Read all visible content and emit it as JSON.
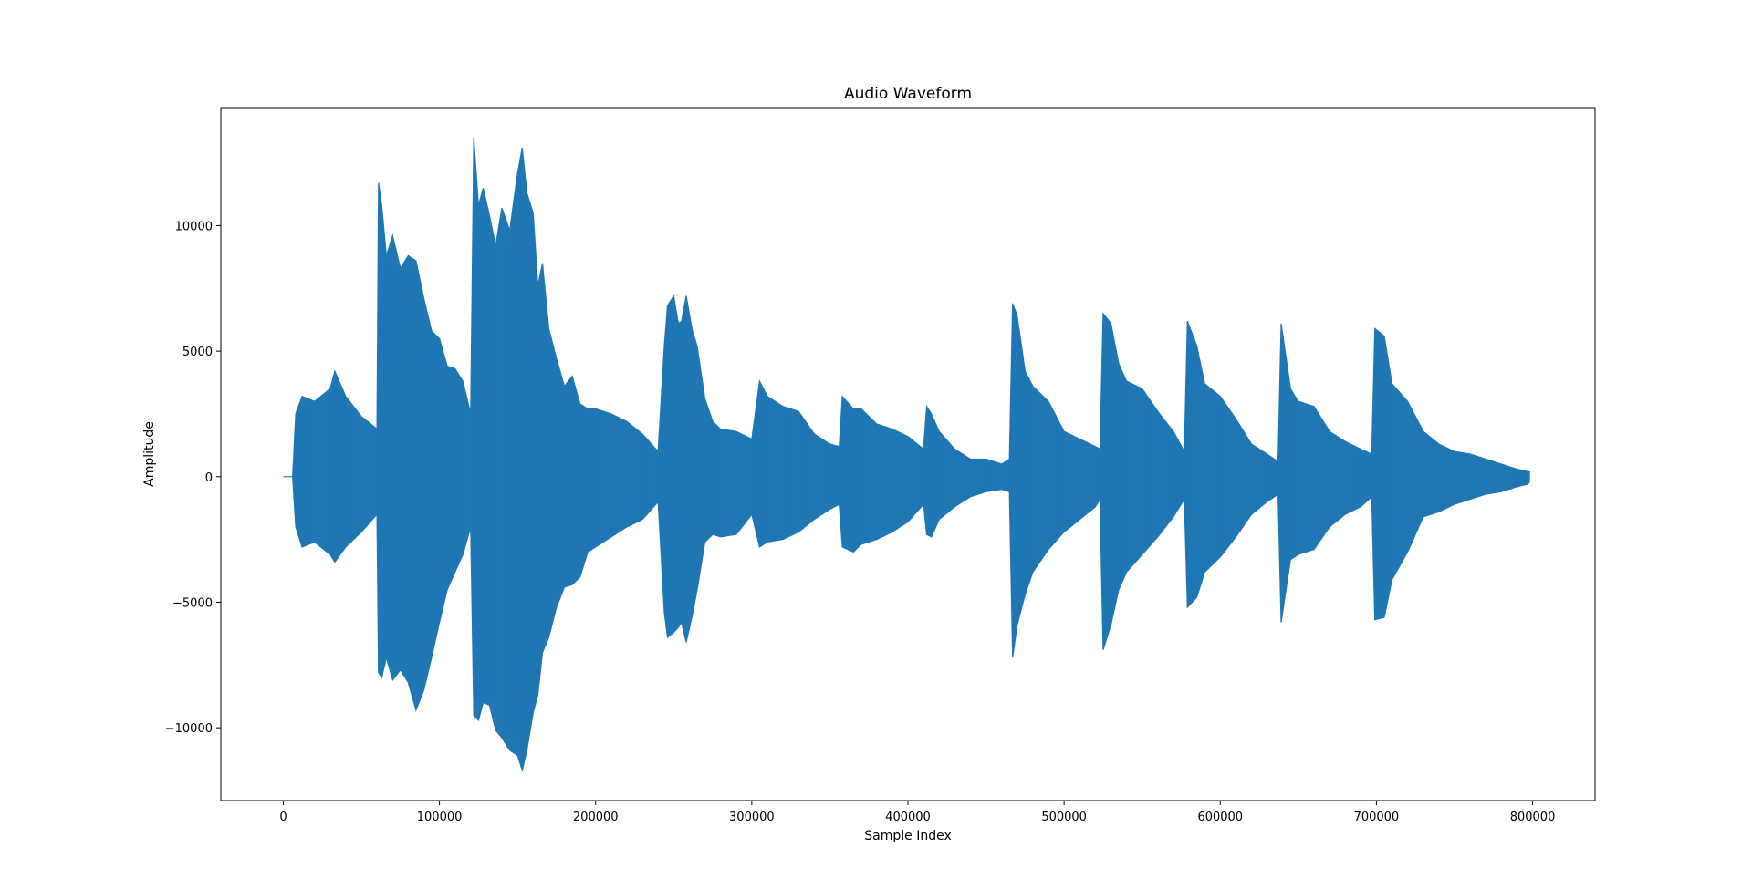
{
  "chart_data": {
    "type": "line",
    "title": "Audio Waveform",
    "xlabel": "Sample Index",
    "ylabel": "Amplitude",
    "xlim": [
      -40000,
      840000
    ],
    "ylim": [
      -12900,
      14700
    ],
    "x_ticks": [
      0,
      100000,
      200000,
      300000,
      400000,
      500000,
      600000,
      700000,
      800000
    ],
    "x_tick_labels": [
      "0",
      "100000",
      "200000",
      "300000",
      "400000",
      "500000",
      "600000",
      "700000",
      "800000"
    ],
    "y_ticks": [
      -10000,
      -5000,
      0,
      5000,
      10000
    ],
    "y_tick_labels": [
      "−10000",
      "−5000",
      "0",
      "5000",
      "10000"
    ],
    "grid": false,
    "series_color": "#1f77b4",
    "series": [
      {
        "x": [
          0,
          6000,
          8000,
          12000,
          20000,
          30000,
          33000,
          40000,
          50000,
          60000,
          61000,
          63000,
          66000,
          70000,
          75000,
          80000,
          85000,
          90000,
          95000,
          100000,
          105000,
          110000,
          115000,
          120000,
          122000,
          125000,
          128000,
          132000,
          136000,
          140000,
          145000,
          150000,
          153000,
          156000,
          160000,
          163000,
          166000,
          170000,
          175000,
          180000,
          185000,
          190000,
          195000,
          200000,
          210000,
          220000,
          230000,
          240000,
          244000,
          246000,
          250000,
          253000,
          255000,
          258000,
          262000,
          265000,
          270000,
          275000,
          280000,
          290000,
          300000,
          305000,
          310000,
          320000,
          330000,
          340000,
          350000,
          356000,
          358000,
          365000,
          370000,
          380000,
          390000,
          400000,
          410000,
          412000,
          415000,
          420000,
          430000,
          440000,
          450000,
          460000,
          465000,
          467000,
          470000,
          475000,
          480000,
          490000,
          500000,
          510000,
          520000,
          523000,
          525000,
          530000,
          535000,
          540000,
          550000,
          560000,
          570000,
          577000,
          579000,
          585000,
          590000,
          600000,
          610000,
          620000,
          630000,
          637000,
          639000,
          645000,
          650000,
          660000,
          670000,
          680000,
          690000,
          697000,
          699000,
          705000,
          710000,
          720000,
          730000,
          740000,
          750000,
          760000,
          770000,
          780000,
          790000,
          797000,
          798000
        ],
        "upper": [
          0,
          0,
          2500,
          3200,
          3000,
          3500,
          4200,
          3200,
          2400,
          1900,
          11700,
          10800,
          8800,
          9600,
          8300,
          8800,
          8600,
          7100,
          5800,
          5500,
          4400,
          4300,
          3800,
          2500,
          13500,
          10800,
          11500,
          10400,
          9200,
          10700,
          9800,
          12100,
          13100,
          11300,
          10500,
          7600,
          8500,
          5900,
          4700,
          3600,
          4000,
          2900,
          2700,
          2700,
          2500,
          2200,
          1700,
          1000,
          5200,
          6800,
          7200,
          6100,
          6200,
          7200,
          5800,
          5200,
          3100,
          2200,
          1900,
          1800,
          1500,
          3800,
          3200,
          2800,
          2600,
          1700,
          1300,
          1200,
          3200,
          2700,
          2700,
          2100,
          1900,
          1600,
          1100,
          2800,
          2500,
          1800,
          1100,
          700,
          700,
          500,
          700,
          6900,
          6400,
          4200,
          3600,
          3000,
          1800,
          1500,
          1200,
          1100,
          6500,
          6100,
          4500,
          3800,
          3500,
          2600,
          1800,
          1000,
          6200,
          5200,
          3700,
          3200,
          2300,
          1300,
          900,
          600,
          6100,
          3500,
          3000,
          2800,
          1800,
          1400,
          1100,
          900,
          5900,
          5600,
          3700,
          3000,
          1800,
          1300,
          1000,
          900,
          700,
          500,
          300,
          200,
          200
        ],
        "lower": [
          0,
          0,
          -2000,
          -2800,
          -2600,
          -3100,
          -3400,
          -2800,
          -2200,
          -1500,
          -7800,
          -8000,
          -7200,
          -8100,
          -7700,
          -8200,
          -9300,
          -8500,
          -7200,
          -5800,
          -4500,
          -3800,
          -3100,
          -2000,
          -9500,
          -9700,
          -9000,
          -9100,
          -10100,
          -10400,
          -10900,
          -11100,
          -11700,
          -10900,
          -9400,
          -8700,
          -7000,
          -6400,
          -5200,
          -4400,
          -4300,
          -4000,
          -3000,
          -2800,
          -2400,
          -2000,
          -1700,
          -1000,
          -5400,
          -6400,
          -6200,
          -6000,
          -5800,
          -6600,
          -5500,
          -4500,
          -2600,
          -2300,
          -2400,
          -2300,
          -1500,
          -2800,
          -2600,
          -2500,
          -2200,
          -1700,
          -1300,
          -1100,
          -2800,
          -3000,
          -2700,
          -2500,
          -2200,
          -1800,
          -1100,
          -2300,
          -2400,
          -1700,
          -1200,
          -800,
          -600,
          -500,
          -600,
          -7200,
          -5900,
          -4700,
          -3800,
          -2900,
          -2200,
          -1700,
          -1200,
          -900,
          -6900,
          -5900,
          -4500,
          -3800,
          -3100,
          -2400,
          -1600,
          -900,
          -5200,
          -4800,
          -3800,
          -3200,
          -2400,
          -1500,
          -1000,
          -700,
          -5800,
          -3300,
          -3100,
          -2900,
          -2000,
          -1500,
          -1200,
          -800,
          -5700,
          -5600,
          -4100,
          -3000,
          -1600,
          -1400,
          -1100,
          -900,
          -700,
          -600,
          -400,
          -300,
          -200
        ]
      }
    ]
  }
}
